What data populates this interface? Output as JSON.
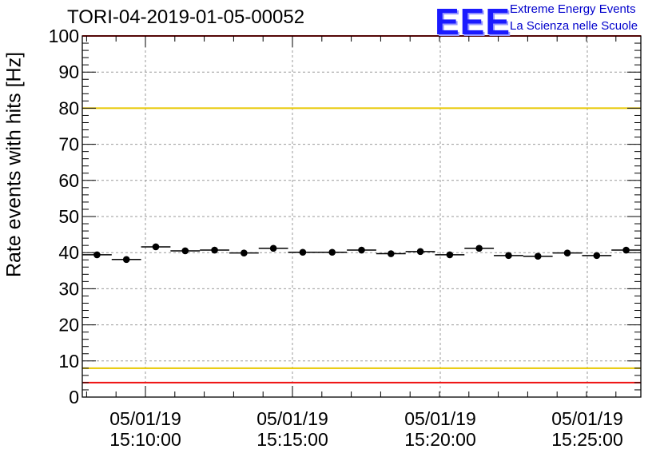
{
  "chart_data": {
    "type": "scatter",
    "title": "TORI-04-2019-01-05-00052",
    "ylabel": "Rate events with hits [Hz]",
    "xlabel": "",
    "ylim": [
      0,
      100
    ],
    "yticks": [
      "0",
      "10",
      "20",
      "30",
      "40",
      "50",
      "60",
      "70",
      "80",
      "90",
      "100"
    ],
    "xticks": [
      {
        "date": "05/01/19",
        "time": "15:10:00"
      },
      {
        "date": "05/01/19",
        "time": "15:15:00"
      },
      {
        "date": "05/01/19",
        "time": "15:20:00"
      },
      {
        "date": "05/01/19",
        "time": "15:25:00"
      }
    ],
    "grid": true,
    "series": [
      {
        "name": "rate",
        "values": [
          39.4,
          38.1,
          41.6,
          40.5,
          40.7,
          39.9,
          41.2,
          40.1,
          40.1,
          40.7,
          39.7,
          40.3,
          39.4,
          41.2,
          39.2,
          39.0,
          39.9,
          39.2,
          40.7
        ]
      }
    ],
    "reference_lines": [
      {
        "value": 100,
        "color": "#ee1111"
      },
      {
        "value": 80,
        "color": "#e8c800"
      },
      {
        "value": 8,
        "color": "#e8c800"
      },
      {
        "value": 4,
        "color": "#ee1111"
      }
    ]
  },
  "logo": {
    "mark": "EEE",
    "line1": "Extreme Energy Events",
    "line2": "La Scienza nelle Scuole"
  }
}
